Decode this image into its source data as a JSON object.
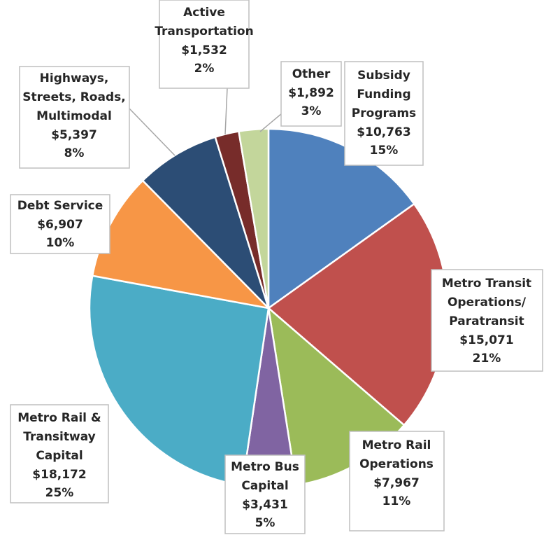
{
  "chart_data": {
    "type": "pie",
    "categories": [
      "Subsidy\nFunding\nPrograms",
      "Metro Transit\nOperations/\nParatransit",
      "Metro Rail\nOperations",
      "Metro Bus\nCapital",
      "Metro Rail &\nTransitway\nCapital",
      "Debt Service",
      "Highways,\nStreets, Roads,\nMultimodal",
      "Active\nTransportation",
      "Other"
    ],
    "values": [
      10763,
      15071,
      7967,
      3431,
      18172,
      6907,
      5397,
      1532,
      1892
    ],
    "value_labels": [
      "$10,763",
      "$15,071",
      "$7,967",
      "$3,431",
      "$18,172",
      "$6,907",
      "$5,397",
      "$1,532",
      "$1,892"
    ],
    "percent_labels": [
      "15%",
      "21%",
      "11%",
      "5%",
      "25%",
      "10%",
      "8%",
      "2%",
      "3%"
    ],
    "colors": [
      "#4f81bd",
      "#c0504d",
      "#9bbb59",
      "#8064a2",
      "#4bacc6",
      "#f79646",
      "#2c4d75",
      "#772c2a",
      "#c3d69b"
    ]
  }
}
